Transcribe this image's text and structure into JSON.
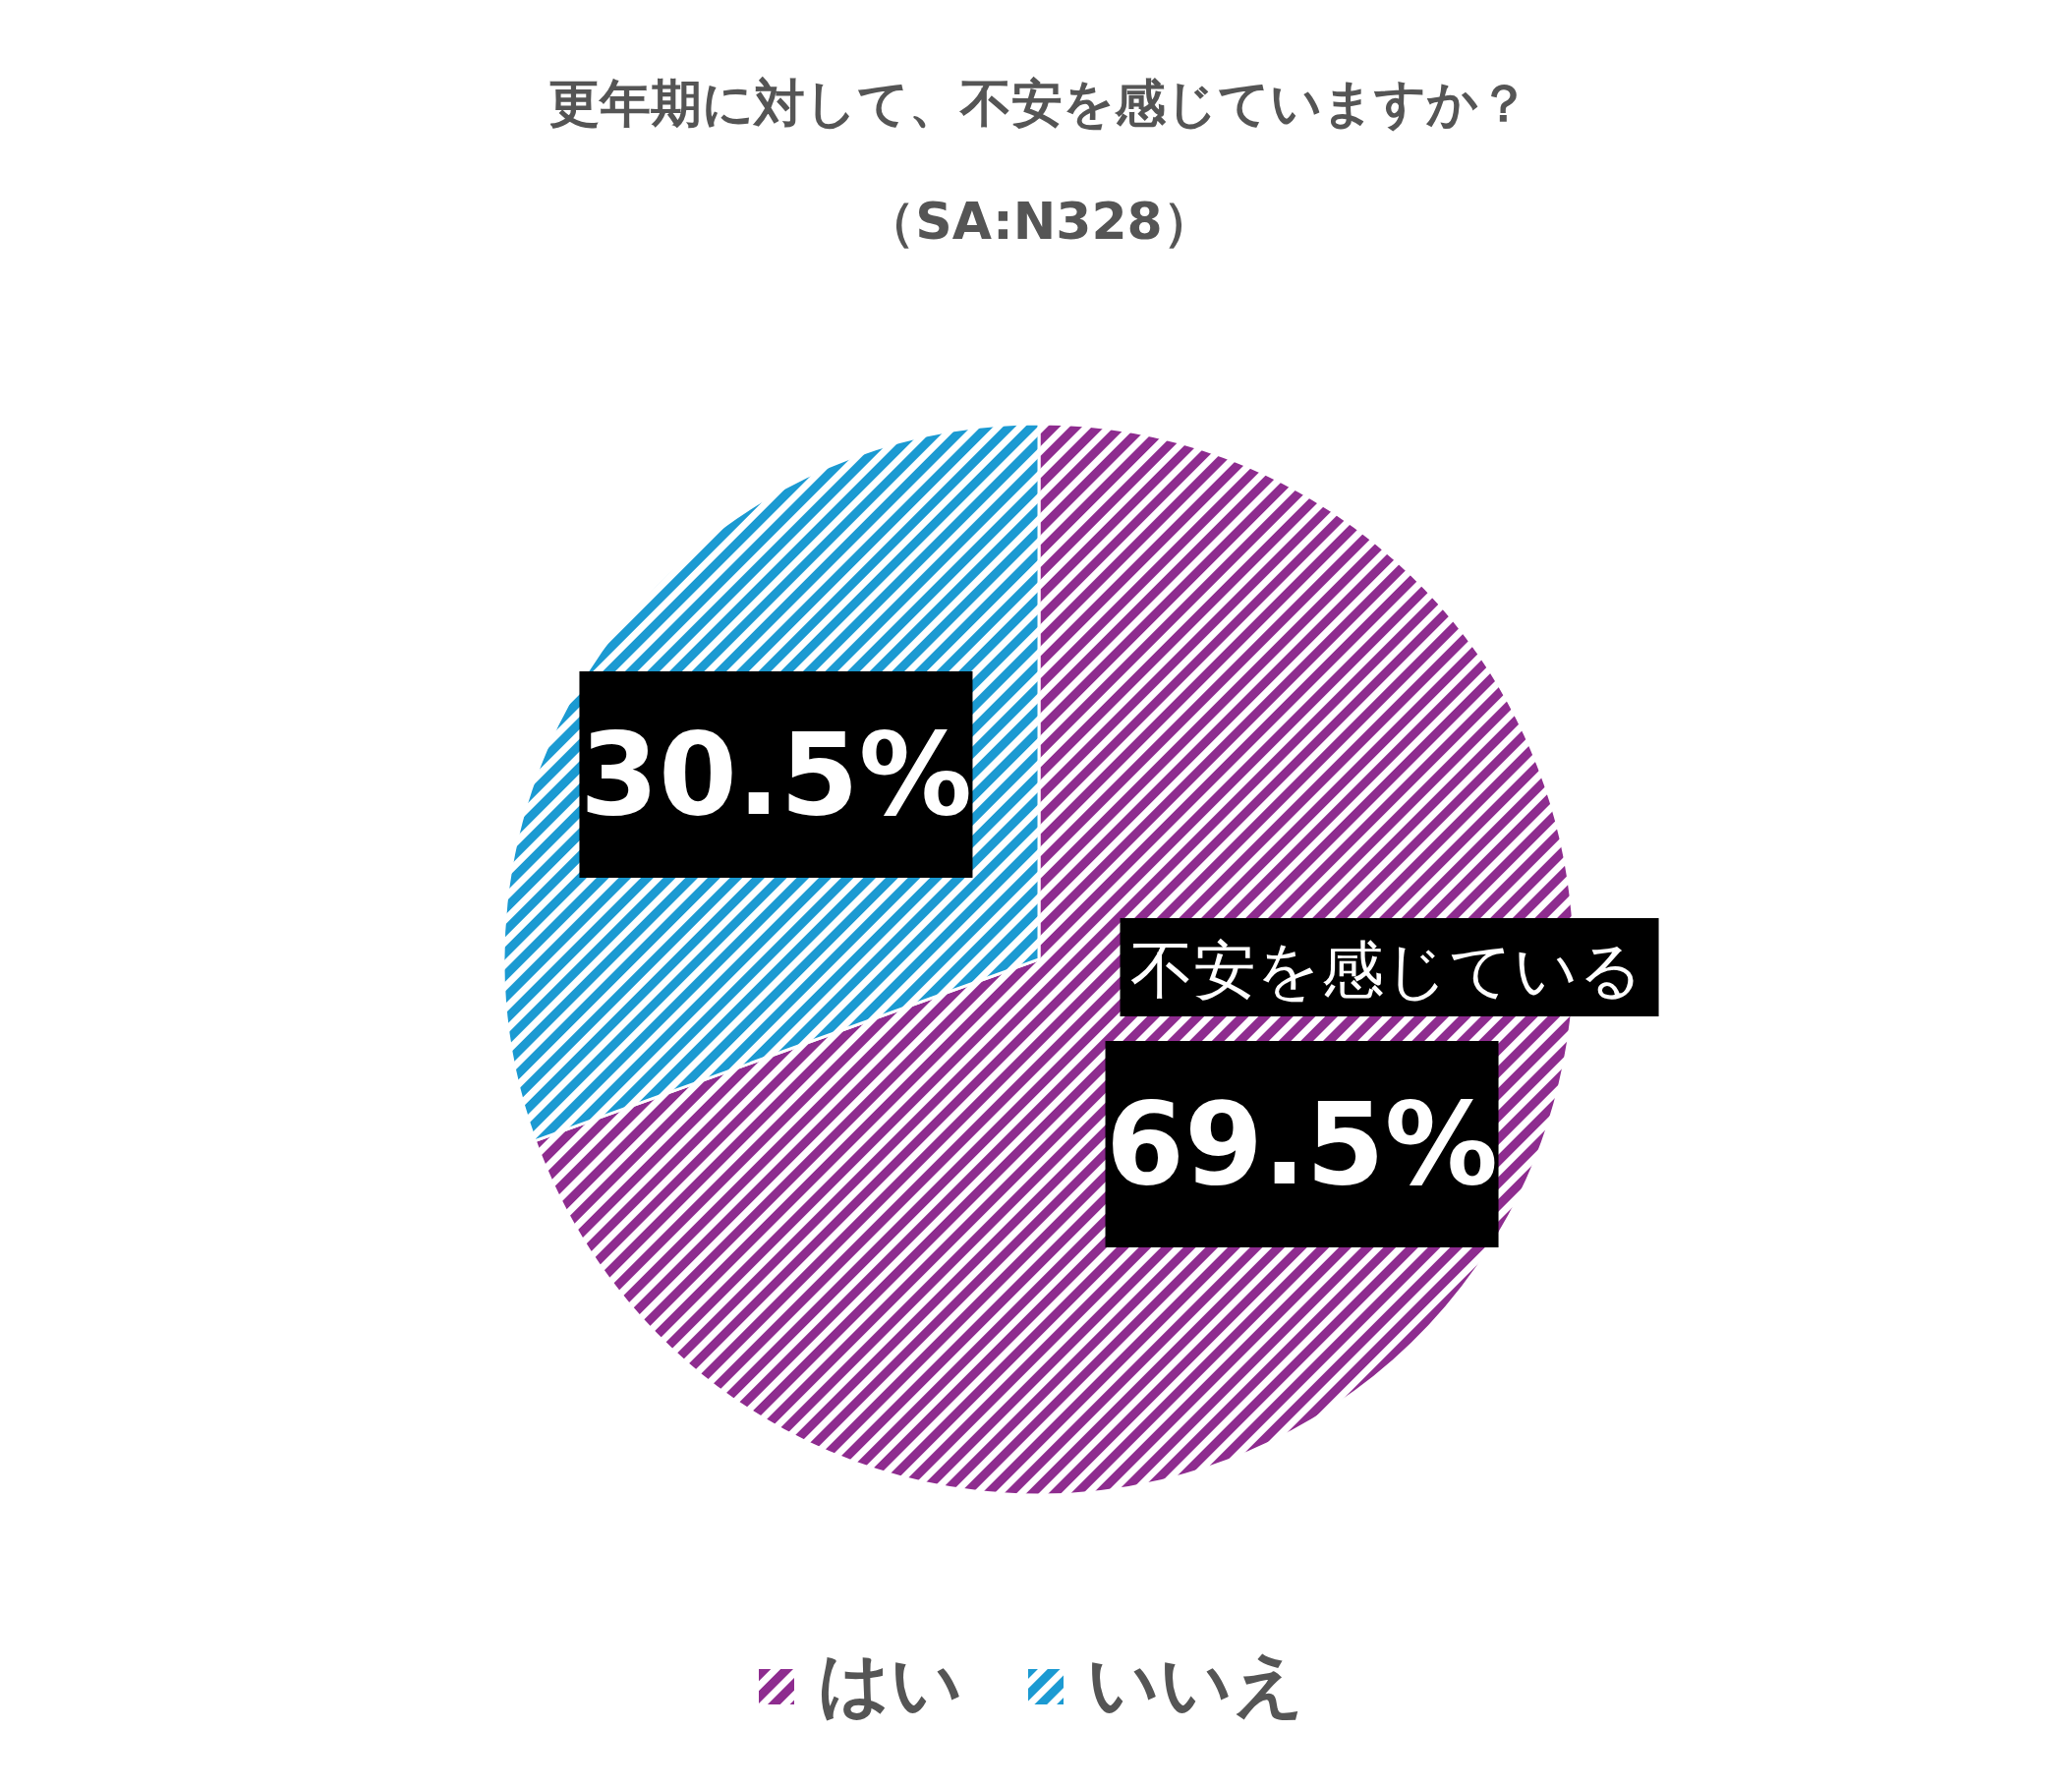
{
  "chart_data": {
    "type": "pie",
    "title": "更年期に対して、不安を感じていますか？",
    "subtitle": "（SA:N328）",
    "categories": [
      "はい",
      "いいえ"
    ],
    "values": [
      69.5,
      30.5
    ],
    "colors": [
      "#8e2c8f",
      "#1b9ad2"
    ],
    "value_labels": [
      "69.5%",
      "30.5%"
    ],
    "annotations": [
      "不安を感じている"
    ],
    "legend": "bottom"
  }
}
